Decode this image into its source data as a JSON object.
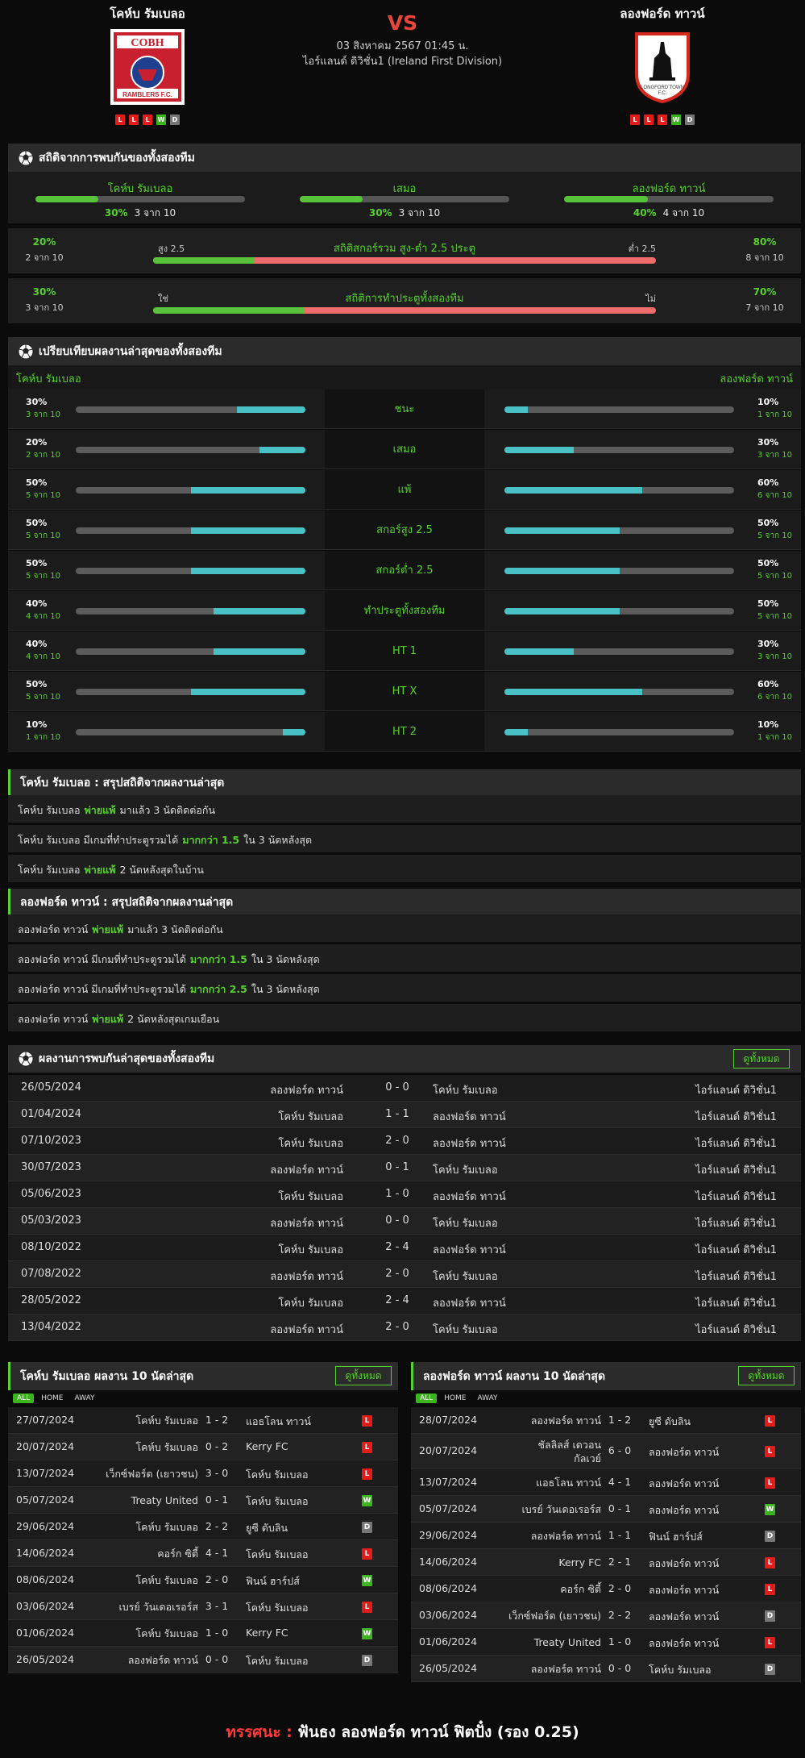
{
  "header": {
    "home": {
      "name": "โคห์บ รัมเบลอ",
      "logo_text": "COBH",
      "form": [
        "L",
        "L",
        "L",
        "W",
        "D"
      ]
    },
    "away": {
      "name": "ลองฟอร์ด ทาวน์",
      "form": [
        "L",
        "L",
        "L",
        "W",
        "D"
      ]
    },
    "vs": "VS",
    "date": "03 สิงหาคม 2567 01:45 น.",
    "league": "ไอร์แลนด์ ดิวิชั่น1 (Ireland First Division)"
  },
  "h2h_stats": {
    "title": "สถิติจากการพบกันของทั้งสองทีม",
    "home": {
      "label": "โคห์บ รัมเบลอ",
      "pct": "30%",
      "count": "3 จาก 10",
      "value": 30
    },
    "draw": {
      "label": "เสมอ",
      "pct": "30%",
      "count": "3 จาก 10",
      "value": 30
    },
    "away": {
      "label": "ลองฟอร์ด ทาวน์",
      "pct": "40%",
      "count": "4 จาก 10",
      "value": 40
    },
    "ou": {
      "title": "สถิติสกอร์รวม สูง-ต่ำ 2.5 ประตู",
      "left_label": "สูง 2.5",
      "right_label": "ต่ำ 2.5",
      "left_pct": "20%",
      "left_count": "2 จาก 10",
      "right_pct": "80%",
      "right_count": "8 จาก 10",
      "value": 20
    },
    "btts": {
      "title": "สถิติการทำประตูทั้งสองทีม",
      "left_label": "ใช่",
      "right_label": "ไม่",
      "left_pct": "30%",
      "left_count": "3 จาก 10",
      "right_pct": "70%",
      "right_count": "7 จาก 10",
      "value": 30
    }
  },
  "compare": {
    "title": "เปรียบเทียบผลงานล่าสุดของทั้งสองทีม",
    "home_label": "โคห์บ รัมเบลอ",
    "away_label": "ลองฟอร์ด ทาวน์",
    "rows": [
      {
        "label": "ชนะ",
        "home_pct": "30%",
        "home_count": "3 จาก 10",
        "home_value": 30,
        "away_pct": "10%",
        "away_count": "1 จาก 10",
        "away_value": 10
      },
      {
        "label": "เสมอ",
        "home_pct": "20%",
        "home_count": "2 จาก 10",
        "home_value": 20,
        "away_pct": "30%",
        "away_count": "3 จาก 10",
        "away_value": 30
      },
      {
        "label": "แพ้",
        "home_pct": "50%",
        "home_count": "5 จาก 10",
        "home_value": 50,
        "away_pct": "60%",
        "away_count": "6 จาก 10",
        "away_value": 60
      },
      {
        "label": "สกอร์สูง 2.5",
        "home_pct": "50%",
        "home_count": "5 จาก 10",
        "home_value": 50,
        "away_pct": "50%",
        "away_count": "5 จาก 10",
        "away_value": 50
      },
      {
        "label": "สกอร์ต่ำ 2.5",
        "home_pct": "50%",
        "home_count": "5 จาก 10",
        "home_value": 50,
        "away_pct": "50%",
        "away_count": "5 จาก 10",
        "away_value": 50
      },
      {
        "label": "ทำประตูทั้งสองทีม",
        "home_pct": "40%",
        "home_count": "4 จาก 10",
        "home_value": 40,
        "away_pct": "50%",
        "away_count": "5 จาก 10",
        "away_value": 50
      },
      {
        "label": "HT 1",
        "home_pct": "40%",
        "home_count": "4 จาก 10",
        "home_value": 40,
        "away_pct": "30%",
        "away_count": "3 จาก 10",
        "away_value": 30
      },
      {
        "label": "HT X",
        "home_pct": "50%",
        "home_count": "5 จาก 10",
        "home_value": 50,
        "away_pct": "60%",
        "away_count": "6 จาก 10",
        "away_value": 60
      },
      {
        "label": "HT 2",
        "home_pct": "10%",
        "home_count": "1 จาก 10",
        "home_value": 10,
        "away_pct": "10%",
        "away_count": "1 จาก 10",
        "away_value": 10
      }
    ]
  },
  "home_summary": {
    "title": "โคห์บ รัมเบลอ : สรุปสถิติจากผลงานล่าสุด",
    "lines": [
      {
        "pre": "โคห์บ รัมเบลอ",
        "hl": "พ่ายแพ้",
        "post": "มาแล้ว 3 นัดติดต่อกัน"
      },
      {
        "pre": "โคห์บ รัมเบลอ  มีเกมที่ทำประตูรวมได้",
        "hl": "มากกว่า  1.5",
        "post": "ใน 3 นัดหลังสุด"
      },
      {
        "pre": "โคห์บ รัมเบลอ",
        "hl": "พ่ายแพ้",
        "post": "2  นัดหลังสุดในบ้าน"
      }
    ]
  },
  "away_summary": {
    "title": "ลองฟอร์ด ทาวน์ : สรุปสถิติจากผลงานล่าสุด",
    "lines": [
      {
        "pre": "ลองฟอร์ด ทาวน์",
        "hl": "พ่ายแพ้",
        "post": "มาแล้ว 3 นัดติดต่อกัน"
      },
      {
        "pre": "ลองฟอร์ด ทาวน์  มีเกมที่ทำประตูรวมได้",
        "hl": "มากกว่า  1.5",
        "post": "ใน 3 นัดหลังสุด"
      },
      {
        "pre": "ลองฟอร์ด ทาวน์  มีเกมที่ทำประตูรวมได้",
        "hl": "มากกว่า  2.5",
        "post": "ใน 3 นัดหลังสุด"
      },
      {
        "pre": "ลองฟอร์ด ทาวน์",
        "hl": "พ่ายแพ้",
        "post": "2  นัดหลังสุดเกมเยือน"
      }
    ]
  },
  "h2h_results": {
    "title": "ผลงานการพบกันล่าสุดของทั้งสองทีม",
    "see_all": "ดูทั้งหมด",
    "rows": [
      {
        "date": "26/05/2024",
        "home": "ลองฟอร์ด ทาวน์",
        "score": "0 - 0",
        "away": "โคห์บ รัมเบลอ",
        "league": "ไอร์แลนด์ ดิวิชั่น1"
      },
      {
        "date": "01/04/2024",
        "home": "โคห์บ รัมเบลอ",
        "score": "1 - 1",
        "away": "ลองฟอร์ด ทาวน์",
        "league": "ไอร์แลนด์ ดิวิชั่น1"
      },
      {
        "date": "07/10/2023",
        "home": "โคห์บ รัมเบลอ",
        "score": "2 - 0",
        "away": "ลองฟอร์ด ทาวน์",
        "league": "ไอร์แลนด์ ดิวิชั่น1"
      },
      {
        "date": "30/07/2023",
        "home": "ลองฟอร์ด ทาวน์",
        "score": "0 - 1",
        "away": "โคห์บ รัมเบลอ",
        "league": "ไอร์แลนด์ ดิวิชั่น1"
      },
      {
        "date": "05/06/2023",
        "home": "โคห์บ รัมเบลอ",
        "score": "1 - 0",
        "away": "ลองฟอร์ด ทาวน์",
        "league": "ไอร์แลนด์ ดิวิชั่น1"
      },
      {
        "date": "05/03/2023",
        "home": "ลองฟอร์ด ทาวน์",
        "score": "0 - 0",
        "away": "โคห์บ รัมเบลอ",
        "league": "ไอร์แลนด์ ดิวิชั่น1"
      },
      {
        "date": "08/10/2022",
        "home": "โคห์บ รัมเบลอ",
        "score": "2 - 4",
        "away": "ลองฟอร์ด ทาวน์",
        "league": "ไอร์แลนด์ ดิวิชั่น1"
      },
      {
        "date": "07/08/2022",
        "home": "ลองฟอร์ด ทาวน์",
        "score": "2 - 0",
        "away": "โคห์บ รัมเบลอ",
        "league": "ไอร์แลนด์ ดิวิชั่น1"
      },
      {
        "date": "28/05/2022",
        "home": "โคห์บ รัมเบลอ",
        "score": "2 - 4",
        "away": "ลองฟอร์ด ทาวน์",
        "league": "ไอร์แลนด์ ดิวิชั่น1"
      },
      {
        "date": "13/04/2022",
        "home": "ลองฟอร์ด ทาวน์",
        "score": "2 - 0",
        "away": "โคห์บ รัมเบลอ",
        "league": "ไอร์แลนด์ ดิวิชั่น1"
      }
    ]
  },
  "home_last10": {
    "title": "โคห์บ รัมเบลอ ผลงาน 10 นัดล่าสุด",
    "see_all": "ดูทั้งหมด",
    "filters": [
      "ALL",
      "HOME",
      "AWAY"
    ],
    "rows": [
      {
        "date": "27/07/2024",
        "home": "โคห์บ รัมเบลอ",
        "score": "1 - 2",
        "away": "แอธโลน ทาวน์",
        "result": "L"
      },
      {
        "date": "20/07/2024",
        "home": "โคห์บ รัมเบลอ",
        "score": "0 - 2",
        "away": "Kerry FC",
        "result": "L"
      },
      {
        "date": "13/07/2024",
        "home": "เว็กซ์ฟอร์ด (เยาวชน)",
        "score": "3 - 0",
        "away": "โคห์บ รัมเบลอ",
        "result": "L"
      },
      {
        "date": "05/07/2024",
        "home": "Treaty United",
        "score": "0 - 1",
        "away": "โคห์บ รัมเบลอ",
        "result": "W"
      },
      {
        "date": "29/06/2024",
        "home": "โคห์บ รัมเบลอ",
        "score": "2 - 2",
        "away": "ยูซี ดับลิน",
        "result": "D"
      },
      {
        "date": "14/06/2024",
        "home": "คอร์ก ซิตี้",
        "score": "4 - 1",
        "away": "โคห์บ รัมเบลอ",
        "result": "L"
      },
      {
        "date": "08/06/2024",
        "home": "โคห์บ รัมเบลอ",
        "score": "2 - 0",
        "away": "ฟินน์ ฮาร์ปส์",
        "result": "W"
      },
      {
        "date": "03/06/2024",
        "home": "เบรย์ วันเดอเรอร์ส",
        "score": "3 - 1",
        "away": "โคห์บ รัมเบลอ",
        "result": "L"
      },
      {
        "date": "01/06/2024",
        "home": "โคห์บ รัมเบลอ",
        "score": "1 - 0",
        "away": "Kerry FC",
        "result": "W"
      },
      {
        "date": "26/05/2024",
        "home": "ลองฟอร์ด ทาวน์",
        "score": "0 - 0",
        "away": "โคห์บ รัมเบลอ",
        "result": "D"
      }
    ]
  },
  "away_last10": {
    "title": "ลองฟอร์ด ทาวน์ ผลงาน 10 นัดล่าสุด",
    "see_all": "ดูทั้งหมด",
    "filters": [
      "ALL",
      "HOME",
      "AWAY"
    ],
    "rows": [
      {
        "date": "28/07/2024",
        "home": "ลองฟอร์ด ทาวน์",
        "score": "1 - 2",
        "away": "ยูซี ดับลิน",
        "result": "L"
      },
      {
        "date": "20/07/2024",
        "home": "ชัลลิลส์ เดวอน\nกัลเวย์",
        "score": "6 - 0",
        "away": "ลองฟอร์ด ทาวน์",
        "result": "L"
      },
      {
        "date": "13/07/2024",
        "home": "แอธโลน ทาวน์",
        "score": "4 - 1",
        "away": "ลองฟอร์ด ทาวน์",
        "result": "L"
      },
      {
        "date": "05/07/2024",
        "home": "เบรย์ วันเดอเรอร์ส",
        "score": "0 - 1",
        "away": "ลองฟอร์ด ทาวน์",
        "result": "W"
      },
      {
        "date": "29/06/2024",
        "home": "ลองฟอร์ด ทาวน์",
        "score": "1 - 1",
        "away": "ฟินน์ ฮาร์ปส์",
        "result": "D"
      },
      {
        "date": "14/06/2024",
        "home": "Kerry FC",
        "score": "2 - 1",
        "away": "ลองฟอร์ด ทาวน์",
        "result": "L"
      },
      {
        "date": "08/06/2024",
        "home": "คอร์ก ซิตี้",
        "score": "2 - 0",
        "away": "ลองฟอร์ด ทาวน์",
        "result": "L"
      },
      {
        "date": "03/06/2024",
        "home": "เว็กซ์ฟอร์ด (เยาวชน)",
        "score": "2 - 2",
        "away": "ลองฟอร์ด ทาวน์",
        "result": "D"
      },
      {
        "date": "01/06/2024",
        "home": "Treaty United",
        "score": "1 - 0",
        "away": "ลองฟอร์ด ทาวน์",
        "result": "L"
      },
      {
        "date": "26/05/2024",
        "home": "ลองฟอร์ด ทาวน์",
        "score": "0 - 0",
        "away": "โคห์บ รัมเบลอ",
        "result": "D"
      }
    ]
  },
  "verdict": {
    "label": "ทรรศนะ :",
    "text": "ฟันธง ลองฟอร์ด ทาวน์ ฟิตปั๋ง (รอง 0.25)"
  },
  "colors": {
    "accent": "#58d12e",
    "bar_cyan": "#49c1c4",
    "bar_red": "#f06b6b",
    "loss": "#e21b1b",
    "win": "#3bb41e",
    "draw": "#777777"
  }
}
